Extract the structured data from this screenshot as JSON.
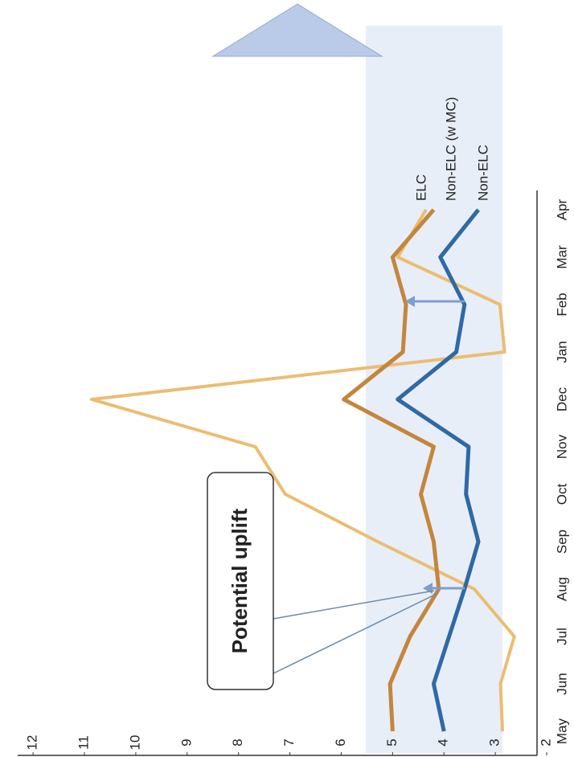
{
  "chart_data": {
    "type": "line",
    "categories": [
      "May",
      "Jun",
      "Jul",
      "Aug",
      "Sep",
      "Oct",
      "Nov",
      "Dec",
      "Jan",
      "Feb",
      "Mar",
      "Apr"
    ],
    "series": [
      {
        "name": "ELC",
        "color": "#ebbd72",
        "values": [
          2.86,
          2.9,
          2.63,
          3.41,
          5.29,
          7.09,
          7.67,
          10.86,
          2.82,
          2.91,
          4.9,
          4.35
        ]
      },
      {
        "name": "Non-ELC (w MC)",
        "color": "#c4863c",
        "values": [
          5.0,
          5.05,
          4.66,
          4.1,
          4.2,
          4.45,
          4.2,
          5.95,
          4.8,
          4.74,
          5.0,
          4.2
        ]
      },
      {
        "name": "Non-ELC",
        "color": "#2f69a6",
        "values": [
          4.0,
          4.2,
          3.9,
          3.6,
          3.33,
          3.57,
          3.52,
          4.9,
          3.76,
          3.6,
          4.07,
          3.33
        ]
      }
    ],
    "ylim": [
      2,
      12.3
    ],
    "yticks": [
      2,
      3,
      4,
      5,
      6,
      7,
      8,
      9,
      10,
      11,
      12
    ],
    "annotation": "Potential uplift"
  }
}
